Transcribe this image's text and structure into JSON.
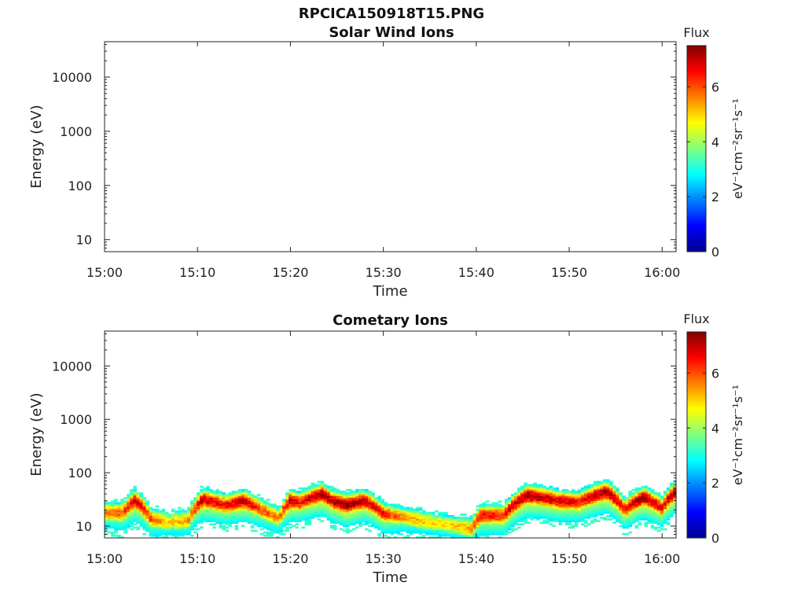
{
  "figure_title": "RPCICA150918T15.PNG",
  "colors": {
    "colormap": [
      "#00008f",
      "#0000ff",
      "#00ffff",
      "#ffff00",
      "#ff0000",
      "#800000"
    ]
  },
  "chart_data": [
    {
      "type": "heatmap",
      "title": "Solar Wind Ions",
      "xlabel": "Time",
      "ylabel": "Energy (eV)",
      "x_ticks": [
        "15:00",
        "15:10",
        "15:20",
        "15:30",
        "15:40",
        "15:50",
        "16:00"
      ],
      "x_range_minutes": [
        0,
        61.5
      ],
      "y_scale": "log",
      "y_ticks": [
        "10",
        "100",
        "1000",
        "10000"
      ],
      "y_range_eV": [
        6,
        45000
      ],
      "colorbar": {
        "title": "Flux",
        "unit": "eV⁻¹cm⁻²sr⁻¹s⁻¹",
        "ticks": [
          "0",
          "2",
          "4",
          "6"
        ],
        "range": [
          0,
          7.5
        ]
      },
      "data_present": false
    },
    {
      "type": "heatmap",
      "title": "Cometary Ions",
      "xlabel": "Time",
      "ylabel": "Energy (eV)",
      "x_ticks": [
        "15:00",
        "15:10",
        "15:20",
        "15:30",
        "15:40",
        "15:50",
        "16:00"
      ],
      "x_range_minutes": [
        0,
        61.5
      ],
      "y_scale": "log",
      "y_ticks": [
        "10",
        "100",
        "1000",
        "10000"
      ],
      "y_range_eV": [
        6,
        45000
      ],
      "colorbar": {
        "title": "Flux",
        "unit": "eV⁻¹cm⁻²sr⁻¹s⁻¹",
        "ticks": [
          "0",
          "2",
          "4",
          "6"
        ],
        "range": [
          0,
          7.5
        ]
      },
      "data_present": true,
      "band_minutes": [
        0,
        2,
        3.3,
        5,
        7,
        9,
        10.6,
        13,
        15,
        17,
        18.8,
        20,
        21,
        23.4,
        24.5,
        26,
        28,
        30,
        32,
        35,
        38,
        39.5,
        40.5,
        43,
        45.5,
        47,
        49,
        51,
        54,
        56,
        58,
        60,
        61.5
      ],
      "band_center_eV": [
        18,
        18,
        30,
        14,
        12,
        13,
        32,
        25,
        30,
        20,
        14,
        30,
        28,
        40,
        30,
        25,
        30,
        17,
        15,
        12,
        10,
        9,
        16,
        16,
        38,
        35,
        30,
        28,
        45,
        20,
        35,
        22,
        45
      ],
      "band_peak_flux": [
        5.5,
        6,
        7,
        6,
        5,
        5.5,
        7,
        6.5,
        7,
        6,
        5.5,
        7,
        6.5,
        7.3,
        7,
        7.3,
        7,
        6.5,
        5.5,
        5,
        5,
        5.5,
        6.5,
        6.5,
        7.3,
        7,
        6.8,
        6.5,
        7.3,
        6.5,
        7.3,
        6.5,
        7.3
      ]
    }
  ]
}
